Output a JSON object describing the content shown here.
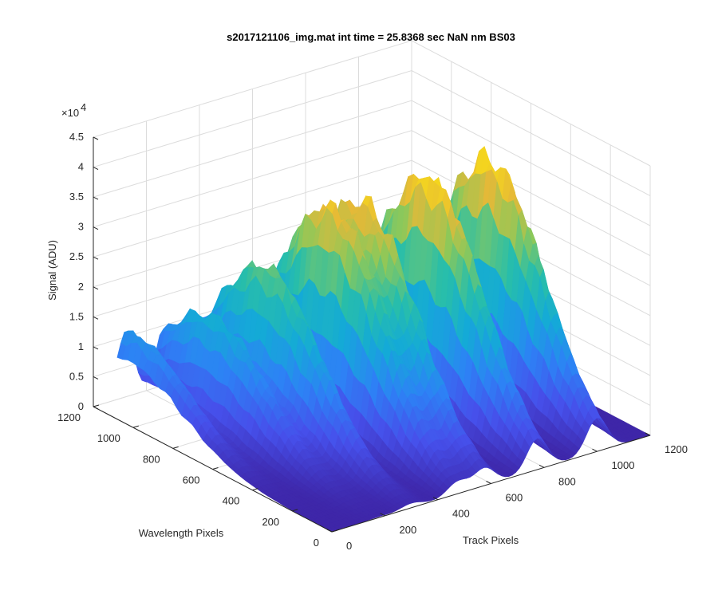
{
  "chart_data": {
    "type": "surface",
    "title": "s2017121106_img.mat int time = 25.8368 sec  NaN nm BS03",
    "xlabel": "Track Pixels",
    "ylabel": "Wavelength Pixels",
    "zlabel": "Signal (ADU)",
    "xlim": [
      0,
      1200
    ],
    "ylim": [
      0,
      1200
    ],
    "zlim": [
      0,
      45000
    ],
    "x_ticks": [
      "0",
      "200",
      "400",
      "600",
      "800",
      "1000",
      "1200"
    ],
    "y_ticks": [
      "0",
      "200",
      "400",
      "600",
      "800",
      "1000",
      "1200"
    ],
    "z_ticks": [
      "0",
      "0.5",
      "1",
      "1.5",
      "2",
      "2.5",
      "3",
      "3.5",
      "4",
      "4.5"
    ],
    "z_multiplier": "×10",
    "z_multiplier_exp": "4",
    "grid": true,
    "colormap": "parula",
    "surface_extent": {
      "x": [
        0,
        1200
      ],
      "y": [
        0,
        1080
      ]
    },
    "tracks": [
      {
        "x_center": 30,
        "peak_signal": 14500,
        "peak_wavelength_pixel": 1020
      },
      {
        "x_center": 175,
        "peak_signal": 19000,
        "peak_wavelength_pixel": 830
      },
      {
        "x_center": 300,
        "peak_signal": 27500,
        "peak_wavelength_pixel": 720
      },
      {
        "x_center": 475,
        "peak_signal": 35000,
        "peak_wavelength_pixel": 640
      },
      {
        "x_center": 575,
        "peak_signal": 35500,
        "peak_wavelength_pixel": 600
      },
      {
        "x_center": 775,
        "peak_signal": 39500,
        "peak_wavelength_pixel": 540
      },
      {
        "x_center": 1000,
        "peak_signal": 39500,
        "peak_wavelength_pixel": 530
      }
    ]
  }
}
